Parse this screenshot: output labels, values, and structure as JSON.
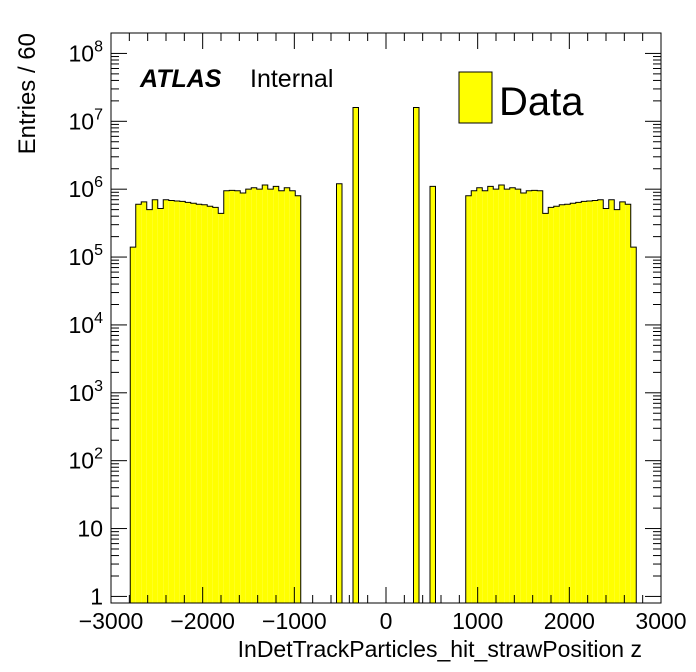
{
  "chart_data": {
    "type": "bar",
    "histogram": true,
    "xlabel": "InDetTrackParticles_hit_strawPosition z",
    "ylabel": "Entries / 60",
    "ylog": true,
    "xlim": [
      -3000,
      3000
    ],
    "ylim": [
      0.8,
      200000000
    ],
    "x_ticks": [
      -3000,
      -2000,
      -1000,
      0,
      1000,
      2000,
      3000
    ],
    "x_tick_labels": [
      "−3000",
      "−2000",
      "−1000",
      "0",
      "1000",
      "2000",
      "3000"
    ],
    "y_ticks": [
      {
        "value": 1,
        "base": "1",
        "exp": ""
      },
      {
        "value": 10,
        "base": "10",
        "exp": ""
      },
      {
        "value": 100,
        "base": "10",
        "exp": "2"
      },
      {
        "value": 1000,
        "base": "10",
        "exp": "3"
      },
      {
        "value": 10000,
        "base": "10",
        "exp": "4"
      },
      {
        "value": 100000,
        "base": "10",
        "exp": "5"
      },
      {
        "value": 1000000,
        "base": "10",
        "exp": "6"
      },
      {
        "value": 10000000,
        "base": "10",
        "exp": "7"
      },
      {
        "value": 100000000,
        "base": "10",
        "exp": "8"
      }
    ],
    "bin_width": 60,
    "bins": [
      {
        "x0": -2790,
        "v": 140000
      },
      {
        "x0": -2730,
        "v": 600000
      },
      {
        "x0": -2670,
        "v": 650000
      },
      {
        "x0": -2610,
        "v": 500000
      },
      {
        "x0": -2550,
        "v": 700000
      },
      {
        "x0": -2490,
        "v": 520000
      },
      {
        "x0": -2430,
        "v": 700000
      },
      {
        "x0": -2370,
        "v": 680000
      },
      {
        "x0": -2310,
        "v": 670000
      },
      {
        "x0": -2250,
        "v": 660000
      },
      {
        "x0": -2190,
        "v": 640000
      },
      {
        "x0": -2130,
        "v": 620000
      },
      {
        "x0": -2070,
        "v": 600000
      },
      {
        "x0": -2010,
        "v": 590000
      },
      {
        "x0": -1950,
        "v": 560000
      },
      {
        "x0": -1890,
        "v": 540000
      },
      {
        "x0": -1830,
        "v": 440000
      },
      {
        "x0": -1770,
        "v": 950000
      },
      {
        "x0": -1710,
        "v": 960000
      },
      {
        "x0": -1650,
        "v": 950000
      },
      {
        "x0": -1590,
        "v": 880000
      },
      {
        "x0": -1530,
        "v": 1000000
      },
      {
        "x0": -1470,
        "v": 1050000
      },
      {
        "x0": -1410,
        "v": 1000000
      },
      {
        "x0": -1350,
        "v": 1150000
      },
      {
        "x0": -1290,
        "v": 1000000
      },
      {
        "x0": -1230,
        "v": 1100000
      },
      {
        "x0": -1170,
        "v": 950000
      },
      {
        "x0": -1110,
        "v": 1050000
      },
      {
        "x0": -1050,
        "v": 950000
      },
      {
        "x0": -990,
        "v": 800000
      },
      {
        "x0": -540,
        "v": 1200000
      },
      {
        "x0": -360,
        "v": 16000000
      },
      {
        "x0": 300,
        "v": 16000000
      },
      {
        "x0": 480,
        "v": 1100000
      },
      {
        "x0": 870,
        "v": 800000
      },
      {
        "x0": 930,
        "v": 950000
      },
      {
        "x0": 990,
        "v": 1050000
      },
      {
        "x0": 1050,
        "v": 950000
      },
      {
        "x0": 1110,
        "v": 1100000
      },
      {
        "x0": 1170,
        "v": 1000000
      },
      {
        "x0": 1230,
        "v": 1150000
      },
      {
        "x0": 1290,
        "v": 1000000
      },
      {
        "x0": 1350,
        "v": 1050000
      },
      {
        "x0": 1410,
        "v": 1000000
      },
      {
        "x0": 1470,
        "v": 880000
      },
      {
        "x0": 1530,
        "v": 950000
      },
      {
        "x0": 1590,
        "v": 960000
      },
      {
        "x0": 1650,
        "v": 950000
      },
      {
        "x0": 1710,
        "v": 440000
      },
      {
        "x0": 1770,
        "v": 540000
      },
      {
        "x0": 1830,
        "v": 560000
      },
      {
        "x0": 1890,
        "v": 590000
      },
      {
        "x0": 1950,
        "v": 600000
      },
      {
        "x0": 2010,
        "v": 620000
      },
      {
        "x0": 2070,
        "v": 640000
      },
      {
        "x0": 2130,
        "v": 660000
      },
      {
        "x0": 2190,
        "v": 670000
      },
      {
        "x0": 2250,
        "v": 680000
      },
      {
        "x0": 2310,
        "v": 700000
      },
      {
        "x0": 2370,
        "v": 520000
      },
      {
        "x0": 2430,
        "v": 700000
      },
      {
        "x0": 2490,
        "v": 500000
      },
      {
        "x0": 2550,
        "v": 650000
      },
      {
        "x0": 2610,
        "v": 600000
      },
      {
        "x0": 2670,
        "v": 140000
      }
    ],
    "fill_color": "#ffff00",
    "line_color": "#000000",
    "legend": {
      "label": "Data",
      "position": "top-right"
    },
    "atlas_label": "ATLAS",
    "atlas_status": "Internal"
  }
}
